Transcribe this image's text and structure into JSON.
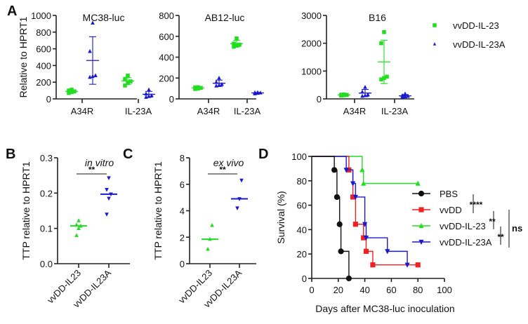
{
  "figure": {
    "panel_labels": [
      "A",
      "B",
      "C",
      "D"
    ]
  },
  "colors": {
    "vvDD-IL-23": "#22dd22",
    "vvDD-IL-23A": "#1a1acc",
    "PBS": "#111111",
    "vvDD": "#ee2222"
  },
  "chart_data": [
    {
      "id": "A1",
      "panel": "A",
      "type": "scatter",
      "title": "MC38-luc",
      "ylabel": "Relative to HPRT1",
      "xlabel": "",
      "categories": [
        "A34R",
        "IL-23A"
      ],
      "ylim": [
        0,
        1000
      ],
      "yticks": [
        0,
        200,
        400,
        600,
        800,
        1000
      ],
      "series": [
        {
          "name": "vvDD-IL-23",
          "marker": "square",
          "points": [
            [
              70,
              80,
              90,
              100,
              110
            ],
            [
              160,
              190,
              210,
              240,
              280
            ]
          ],
          "mean": [
            90,
            215
          ],
          "sd": [
            15,
            40
          ]
        },
        {
          "name": "vvDD-IL-23A",
          "marker": "triangle-up",
          "points": [
            [
              260,
              270,
              280,
              570,
              910
            ],
            [
              20,
              30,
              40,
              60,
              110
            ]
          ],
          "mean": [
            460,
            55
          ],
          "sd": [
            285,
            35
          ]
        }
      ]
    },
    {
      "id": "A2",
      "panel": "A",
      "type": "scatter",
      "title": "AB12-luc",
      "ylabel": "",
      "xlabel": "",
      "categories": [
        "A34R",
        "IL-23A"
      ],
      "ylim": [
        0,
        800
      ],
      "yticks": [
        0,
        200,
        400,
        600,
        800
      ],
      "series": [
        {
          "name": "vvDD-IL-23",
          "marker": "square",
          "points": [
            [
              95,
              100,
              105,
              110,
              112
            ],
            [
              500,
              510,
              520,
              530,
              580
            ]
          ],
          "mean": [
            105,
            530
          ],
          "sd": [
            8,
            30
          ]
        },
        {
          "name": "vvDD-IL-23A",
          "marker": "triangle-up",
          "points": [
            [
              125,
              130,
              140,
              160,
              200
            ],
            [
              50,
              55,
              58,
              60,
              62
            ]
          ],
          "mean": [
            150,
            57
          ],
          "sd": [
            30,
            5
          ]
        }
      ]
    },
    {
      "id": "A3",
      "panel": "A",
      "type": "scatter",
      "title": "B16",
      "ylabel": "",
      "xlabel": "",
      "categories": [
        "A34R",
        "IL-23A"
      ],
      "ylim": [
        0,
        3000
      ],
      "yticks": [
        0,
        1000,
        2000,
        3000
      ],
      "series": [
        {
          "name": "vvDD-IL-23",
          "marker": "square",
          "points": [
            [
              120,
              130,
              140,
              150,
              160
            ],
            [
              700,
              750,
              800,
              2000,
              2400
            ]
          ],
          "mean": [
            140,
            1330
          ],
          "sd": [
            15,
            780
          ]
        },
        {
          "name": "vvDD-IL-23A",
          "marker": "triangle-up",
          "points": [
            [
              100,
              120,
              150,
              250,
              420
            ],
            [
              60,
              80,
              100,
              120,
              180
            ]
          ],
          "mean": [
            210,
            110
          ],
          "sd": [
            130,
            45
          ]
        }
      ]
    },
    {
      "id": "B",
      "panel": "B",
      "type": "scatter",
      "title": "in vitro",
      "ylabel": "TTP relative to HPRT1",
      "xlabel": "",
      "categories": [
        "vvDD-IL23",
        "vvDD-IL23A"
      ],
      "ylim": [
        0,
        0.3
      ],
      "yticks": [
        "0.0",
        "0.1",
        "0.2",
        "0.3"
      ],
      "significance": "**",
      "series": [
        {
          "name": "vvDD-IL23",
          "marker": "triangle-up",
          "points": [
            0.08,
            0.1,
            0.107,
            0.11,
            0.122
          ],
          "median": 0.107
        },
        {
          "name": "vvDD-IL23A",
          "marker": "triangle-down",
          "points": [
            0.14,
            0.185,
            0.197,
            0.21,
            0.243
          ],
          "median": 0.197
        }
      ]
    },
    {
      "id": "C",
      "panel": "C",
      "type": "scatter",
      "title": "ex vivo",
      "ylabel": "TTP relative to HPRT1",
      "xlabel": "",
      "categories": [
        "vvDD-IL23",
        "vvDD-IL23A"
      ],
      "ylim": [
        0,
        8
      ],
      "yticks": [
        0,
        2,
        4,
        6,
        8
      ],
      "significance": "**",
      "series": [
        {
          "name": "vvDD-IL23",
          "marker": "triangle-up",
          "points": [
            1.1,
            1.85,
            2.9
          ],
          "median": 1.85
        },
        {
          "name": "vvDD-IL23A",
          "marker": "triangle-down",
          "points": [
            4.2,
            4.9,
            6.3
          ],
          "median": 4.9
        }
      ]
    },
    {
      "id": "D",
      "panel": "D",
      "type": "line",
      "subtype": "kaplan-meier",
      "title": "",
      "ylabel": "Survival (%)",
      "xlabel": "Days after MC38-luc inoculation",
      "xlim": [
        0,
        100
      ],
      "ylim": [
        0,
        100
      ],
      "xticks": [
        0,
        20,
        40,
        60,
        80,
        100
      ],
      "yticks": [
        0,
        20,
        40,
        60,
        80,
        100
      ],
      "legend_position": "right",
      "series": [
        {
          "name": "PBS",
          "marker": "circle",
          "steps": [
            [
              0,
              100
            ],
            [
              17,
              88.9
            ],
            [
              19,
              66.7
            ],
            [
              21,
              44.4
            ],
            [
              22,
              22.2
            ],
            [
              28,
              0
            ]
          ]
        },
        {
          "name": "vvDD",
          "marker": "square",
          "steps": [
            [
              0,
              100
            ],
            [
              28,
              88.9
            ],
            [
              31,
              66.7
            ],
            [
              33,
              44.4
            ],
            [
              39,
              33.3
            ],
            [
              41,
              22.2
            ],
            [
              46,
              11.1
            ],
            [
              80,
              11.1
            ]
          ]
        },
        {
          "name": "vvDD-IL-23",
          "marker": "triangle-up",
          "steps": [
            [
              0,
              100
            ],
            [
              38,
              88.9
            ],
            [
              39,
              77.8
            ],
            [
              80,
              77.8
            ]
          ]
        },
        {
          "name": "vvDD-IL-23A",
          "marker": "triangle-down",
          "steps": [
            [
              0,
              100
            ],
            [
              26,
              88.9
            ],
            [
              31,
              77.8
            ],
            [
              33,
              66.7
            ],
            [
              40,
              44.4
            ],
            [
              41,
              33.3
            ],
            [
              57,
              22.2
            ],
            [
              72,
              11.1
            ]
          ]
        }
      ],
      "significance": [
        {
          "pair": [
            "PBS",
            "vvDD"
          ],
          "label": "****"
        },
        {
          "pair": [
            "vvDD",
            "vvDD-IL-23"
          ],
          "label": "**"
        },
        {
          "pair": [
            "vvDD-IL-23",
            "vvDD-IL-23A"
          ],
          "label": "**"
        },
        {
          "pair": [
            "vvDD",
            "vvDD-IL-23A"
          ],
          "label": "ns"
        }
      ]
    }
  ],
  "legend_A": [
    {
      "name": "vvDD-IL-23",
      "marker": "square"
    },
    {
      "name": "vvDD-IL-23A",
      "marker": "triangle-up"
    }
  ]
}
